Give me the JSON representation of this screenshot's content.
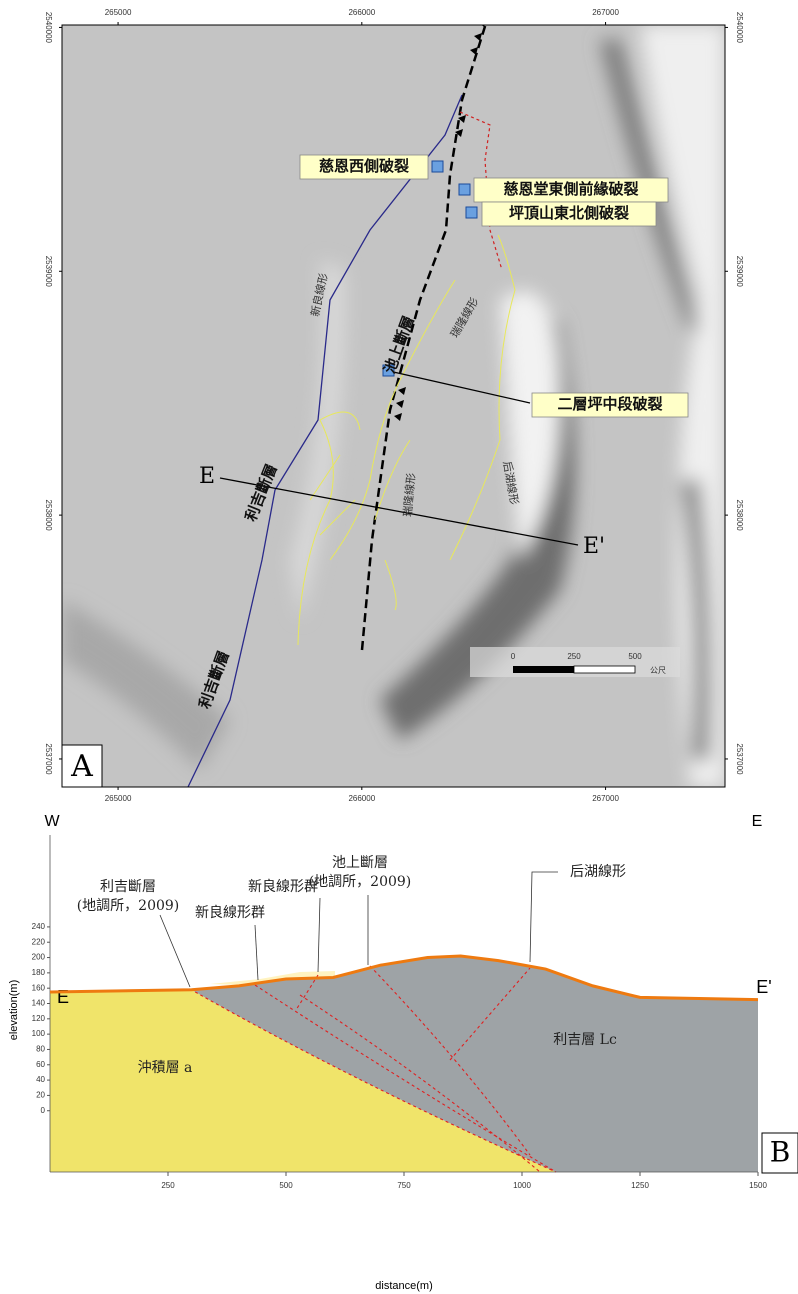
{
  "map": {
    "panel_label": "A",
    "xlim": [
      264770,
      267490
    ],
    "ylim": [
      2536885,
      2540010
    ],
    "xticks": [
      265000,
      266000,
      267000
    ],
    "yticks": [
      2540000,
      2539000,
      2538000,
      2537000
    ],
    "ruptures": [
      "慈恩西側破裂",
      "慈恩堂東側前緣破裂",
      "坪頂山東北側破裂",
      "二層坪中段破裂"
    ],
    "faults": {
      "chishang": "池上斷層",
      "lichi_1": "利吉斷層",
      "lichi_2": "利吉斷層"
    },
    "lineaments": {
      "xinliang": "新良線形",
      "ruilong_1": "瑞隆線形",
      "ruilong_2": "瑞隆線形",
      "houhu": "后湖線形"
    },
    "profile_start": "E",
    "profile_end": "E'",
    "scale_bar": {
      "ticks": [
        0,
        250,
        500
      ],
      "unit": "公尺"
    }
  },
  "section": {
    "panel_label": "B",
    "west": "W",
    "east": "E",
    "x_label": "distance(m)",
    "y_label": "elevation(m)",
    "xlim": [
      0,
      1500
    ],
    "ylim": [
      -80,
      360
    ],
    "xticks": [
      250,
      500,
      750,
      1000,
      1250,
      1500
    ],
    "yticks": [
      0,
      20,
      40,
      60,
      80,
      100,
      120,
      140,
      160,
      180,
      200,
      220,
      240
    ],
    "profile": {
      "x": [
        0,
        300,
        400,
        500,
        600,
        700,
        800,
        870,
        950,
        1050,
        1150,
        1250,
        1500
      ],
      "values": [
        155,
        158,
        163,
        172,
        174,
        190,
        200,
        202,
        196,
        185,
        163,
        148,
        145
      ]
    },
    "profile_start": "E",
    "profile_end": "E'",
    "annotations": {
      "lichi_fault": "利吉斷層",
      "lichi_source": "(地調所，2009)",
      "xinliang_1": "新良線形群",
      "xinliang_2": "新良線形群",
      "chishang_fault": "池上斷層",
      "chishang_source": "(地調所，2009)",
      "houhu": "后湖線形",
      "alluvium": "沖積層 a",
      "lichi_formation": "利吉層 Lc"
    }
  }
}
